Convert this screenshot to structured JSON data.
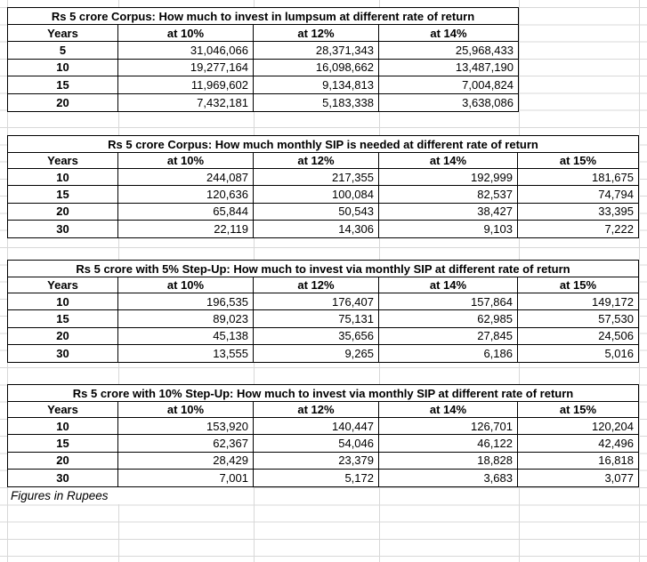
{
  "footnote": "Figures in Rupees",
  "colors": {
    "table_border": "#000000",
    "gridline": "#d8d8d8",
    "text": "#000000",
    "background": "#ffffff"
  },
  "chart_data": [
    {
      "type": "table",
      "title": "Rs 5 crore Corpus: How much to invest in lumpsum at different rate of return",
      "columns": [
        "Years",
        "at 10%",
        "at 12%",
        "at 14%"
      ],
      "rows": [
        [
          "5",
          "31,046,066",
          "28,371,343",
          "25,968,433"
        ],
        [
          "10",
          "19,277,164",
          "16,098,662",
          "13,487,190"
        ],
        [
          "15",
          "11,969,602",
          "9,134,813",
          "7,004,824"
        ],
        [
          "20",
          "7,432,181",
          "5,183,338",
          "3,638,086"
        ]
      ]
    },
    {
      "type": "table",
      "title": "Rs 5 crore Corpus: How much monthly SIP is needed at different rate of return",
      "columns": [
        "Years",
        "at 10%",
        "at 12%",
        "at 14%",
        "at 15%"
      ],
      "rows": [
        [
          "10",
          "244,087",
          "217,355",
          "192,999",
          "181,675"
        ],
        [
          "15",
          "120,636",
          "100,084",
          "82,537",
          "74,794"
        ],
        [
          "20",
          "65,844",
          "50,543",
          "38,427",
          "33,395"
        ],
        [
          "30",
          "22,119",
          "14,306",
          "9,103",
          "7,222"
        ]
      ]
    },
    {
      "type": "table",
      "title": "Rs 5 crore with 5% Step-Up: How much to invest via monthly SIP at different rate of return",
      "columns": [
        "Years",
        "at 10%",
        "at 12%",
        "at 14%",
        "at 15%"
      ],
      "rows": [
        [
          "10",
          "196,535",
          "176,407",
          "157,864",
          "149,172"
        ],
        [
          "15",
          "89,023",
          "75,131",
          "62,985",
          "57,530"
        ],
        [
          "20",
          "45,138",
          "35,656",
          "27,845",
          "24,506"
        ],
        [
          "30",
          "13,555",
          "9,265",
          "6,186",
          "5,016"
        ]
      ]
    },
    {
      "type": "table",
      "title": "Rs 5 crore with 10% Step-Up: How much to invest via monthly SIP at different rate of return",
      "columns": [
        "Years",
        "at 10%",
        "at 12%",
        "at 14%",
        "at 15%"
      ],
      "rows": [
        [
          "10",
          "153,920",
          "140,447",
          "126,701",
          "120,204"
        ],
        [
          "15",
          "62,367",
          "54,046",
          "46,122",
          "42,496"
        ],
        [
          "20",
          "28,429",
          "23,379",
          "18,828",
          "16,818"
        ],
        [
          "30",
          "7,001",
          "5,172",
          "3,683",
          "3,077"
        ]
      ]
    }
  ]
}
